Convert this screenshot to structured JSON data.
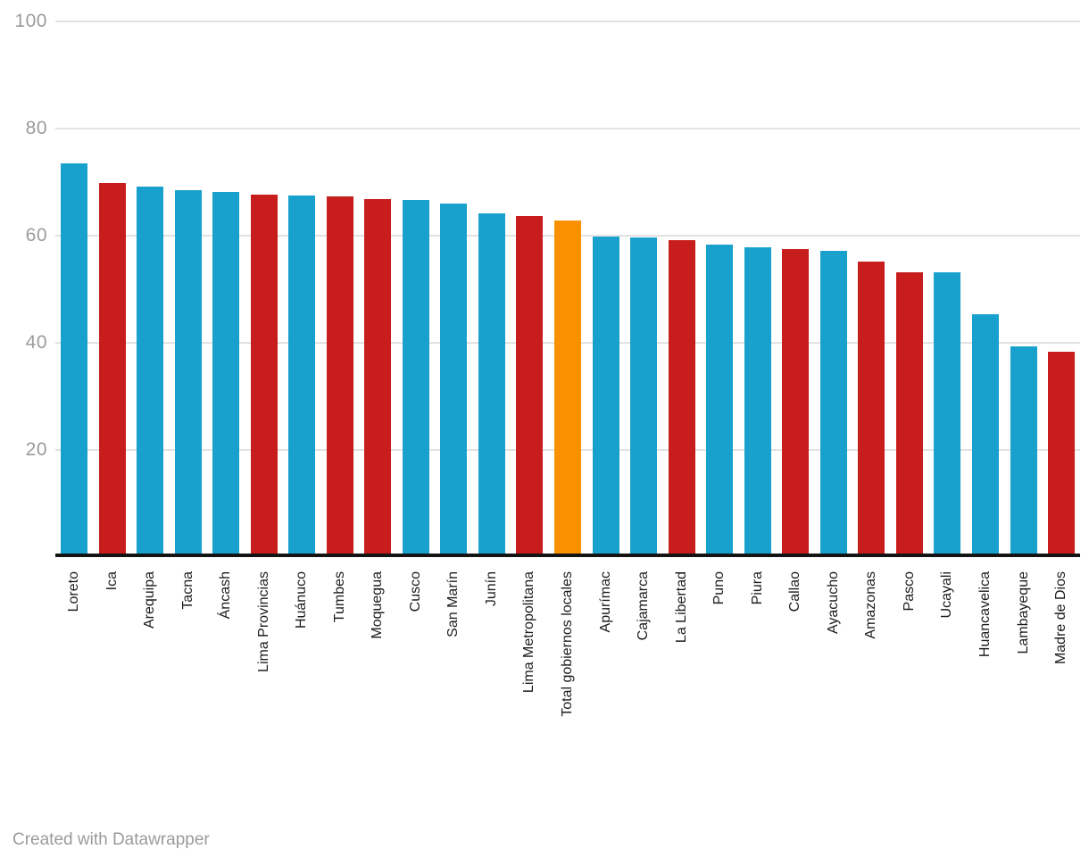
{
  "chart_data": {
    "type": "bar",
    "title": "",
    "xlabel": "",
    "ylabel": "",
    "ylim": [
      0,
      100
    ],
    "yticks": [
      20,
      40,
      60,
      80,
      100
    ],
    "grid": true,
    "legend": "none",
    "categories": [
      "Loreto",
      "Ica",
      "Arequipa",
      "Tacna",
      "Áncash",
      "Lima Provincias",
      "Huánuco",
      "Tumbes",
      "Moquegua",
      "Cusco",
      "San Marín",
      "Junín",
      "Lima Metropolitana",
      "Total gobiernos locales",
      "Apurímac",
      "Cajamarca",
      "La Libertad",
      "Puno",
      "Piura",
      "Callao",
      "Ayacucho",
      "Amazonas",
      "Pasco",
      "Ucayali",
      "Huancavelica",
      "Lambayeque",
      "Madre de Dios"
    ],
    "values": [
      73.5,
      69.9,
      69.2,
      68.5,
      68.2,
      67.7,
      67.5,
      67.3,
      66.9,
      66.7,
      66.0,
      64.1,
      63.6,
      62.9,
      59.9,
      59.6,
      59.2,
      58.3,
      57.9,
      57.5,
      57.2,
      55.2,
      53.2,
      53.1,
      45.4,
      39.3,
      38.4
    ],
    "bar_color_keys": [
      "blue",
      "red",
      "blue",
      "blue",
      "blue",
      "red",
      "blue",
      "red",
      "red",
      "blue",
      "blue",
      "blue",
      "red",
      "orange",
      "blue",
      "blue",
      "red",
      "blue",
      "blue",
      "red",
      "blue",
      "red",
      "red",
      "blue",
      "blue",
      "blue",
      "red"
    ]
  },
  "colors": {
    "blue": "#18a1cd",
    "red": "#c71e1d",
    "orange": "#f99000",
    "gridline": "#e2e2e2",
    "axis": "#141414",
    "tick_label": "#9b9b9b",
    "category_label": "#1c1c1c",
    "footer_text": "#9b9b9b",
    "background": "#ffffff"
  },
  "footer": {
    "text": "Created with Datawrapper"
  }
}
